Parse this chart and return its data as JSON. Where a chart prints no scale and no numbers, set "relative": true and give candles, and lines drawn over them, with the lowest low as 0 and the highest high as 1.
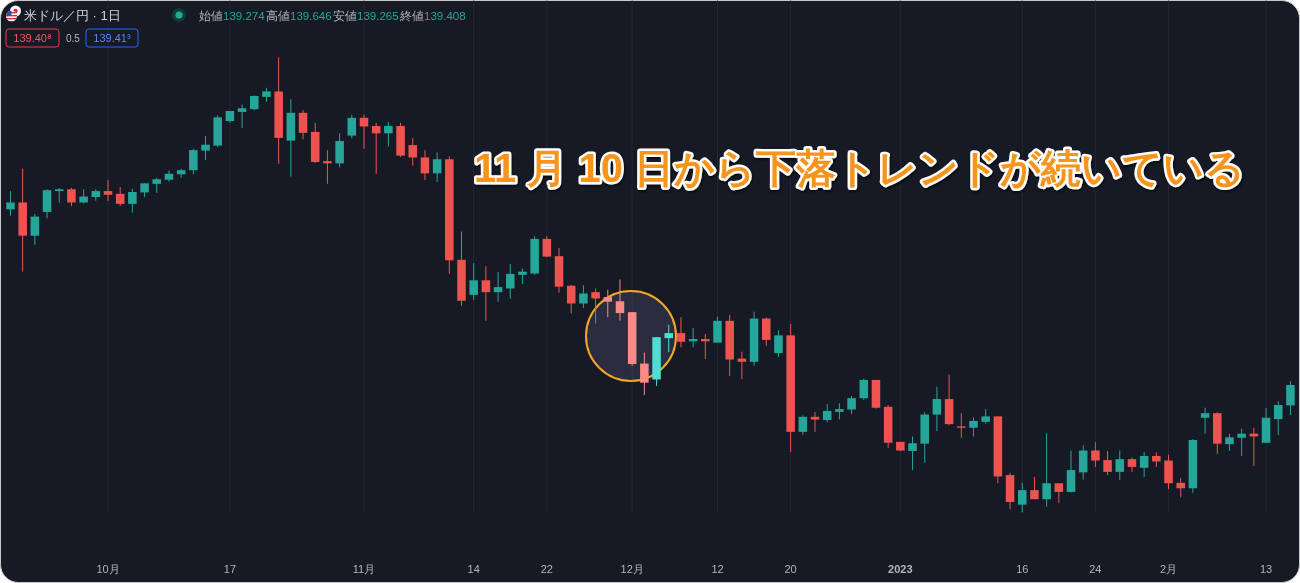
{
  "chart_data": {
    "type": "candlestick",
    "title": "米ドル／円 · 1日",
    "relative": true,
    "grid": "x",
    "categories": [
      null,
      null,
      null,
      null,
      null,
      null,
      null,
      null,
      "10月",
      null,
      null,
      null,
      null,
      null,
      null,
      null,
      null,
      null,
      "17",
      null,
      null,
      null,
      null,
      null,
      null,
      null,
      null,
      null,
      null,
      "11月",
      null,
      null,
      null,
      null,
      null,
      null,
      null,
      null,
      "14",
      null,
      null,
      null,
      null,
      null,
      "22",
      null,
      null,
      null,
      null,
      null,
      null,
      "12月",
      null,
      null,
      null,
      null,
      null,
      null,
      "12",
      null,
      null,
      null,
      null,
      null,
      "20",
      null,
      null,
      null,
      null,
      null,
      null,
      null,
      null,
      "2023",
      null,
      null,
      null,
      null,
      null,
      null,
      null,
      null,
      null,
      "16",
      null,
      null,
      null,
      null,
      null,
      "24",
      null,
      null,
      null,
      null,
      null,
      "2月",
      null,
      null,
      null,
      null,
      null,
      null,
      null,
      "13",
      null,
      null
    ],
    "ohlc": [
      [
        0.666,
        0.706,
        0.652,
        0.681
      ],
      [
        0.681,
        0.755,
        0.529,
        0.608
      ],
      [
        0.608,
        0.656,
        0.588,
        0.65
      ],
      [
        0.66,
        0.71,
        0.646,
        0.708
      ],
      [
        0.706,
        0.713,
        0.681,
        0.71
      ],
      [
        0.71,
        0.713,
        0.673,
        0.681
      ],
      [
        0.681,
        0.71,
        0.679,
        0.694
      ],
      [
        0.693,
        0.71,
        0.685,
        0.706
      ],
      [
        0.706,
        0.73,
        0.684,
        0.698
      ],
      [
        0.7,
        0.715,
        0.673,
        0.678
      ],
      [
        0.678,
        0.711,
        0.659,
        0.704
      ],
      [
        0.703,
        0.723,
        0.693,
        0.723
      ],
      [
        0.722,
        0.735,
        0.702,
        0.732
      ],
      [
        0.731,
        0.751,
        0.727,
        0.744
      ],
      [
        0.743,
        0.755,
        0.735,
        0.752
      ],
      [
        0.752,
        0.799,
        0.743,
        0.796
      ],
      [
        0.795,
        0.827,
        0.774,
        0.808
      ],
      [
        0.806,
        0.873,
        0.803,
        0.868
      ],
      [
        0.86,
        0.882,
        0.856,
        0.882
      ],
      [
        0.88,
        0.896,
        0.845,
        0.888
      ],
      [
        0.886,
        0.916,
        0.884,
        0.915
      ],
      [
        0.913,
        0.933,
        0.902,
        0.925
      ],
      [
        0.925,
        1,
        0.766,
        0.823
      ],
      [
        0.817,
        0.908,
        0.738,
        0.878
      ],
      [
        0.878,
        0.884,
        0.82,
        0.834
      ],
      [
        0.836,
        0.856,
        0.768,
        0.77
      ],
      [
        0.772,
        0.796,
        0.722,
        0.767
      ],
      [
        0.767,
        0.833,
        0.758,
        0.816
      ],
      [
        0.828,
        0.874,
        0.822,
        0.867
      ],
      [
        0.867,
        0.874,
        0.799,
        0.848
      ],
      [
        0.849,
        0.856,
        0.744,
        0.833
      ],
      [
        0.833,
        0.858,
        0.804,
        0.849
      ],
      [
        0.849,
        0.856,
        0.781,
        0.784
      ],
      [
        0.807,
        0.822,
        0.762,
        0.78
      ],
      [
        0.78,
        0.796,
        0.73,
        0.745
      ],
      [
        0.745,
        0.791,
        0.726,
        0.776
      ],
      [
        0.776,
        0.782,
        0.524,
        0.554
      ],
      [
        0.555,
        0.617,
        0.454,
        0.465
      ],
      [
        0.478,
        0.548,
        0.467,
        0.51
      ],
      [
        0.51,
        0.541,
        0.421,
        0.484
      ],
      [
        0.484,
        0.528,
        0.463,
        0.495
      ],
      [
        0.492,
        0.546,
        0.47,
        0.524
      ],
      [
        0.522,
        0.536,
        0.502,
        0.529
      ],
      [
        0.525,
        0.607,
        0.522,
        0.601
      ],
      [
        0.601,
        0.607,
        0.561,
        0.562
      ],
      [
        0.563,
        0.581,
        0.483,
        0.496
      ],
      [
        0.498,
        0.5,
        0.437,
        0.459
      ],
      [
        0.459,
        0.499,
        0.449,
        0.481
      ],
      [
        0.484,
        0.492,
        0.415,
        0.47
      ],
      [
        0.473,
        0.489,
        0.429,
        0.463
      ],
      [
        0.464,
        0.512,
        0.421,
        0.438
      ],
      [
        0.44,
        0.44,
        0.322,
        0.326
      ],
      [
        0.327,
        0.351,
        0.258,
        0.285
      ],
      [
        0.292,
        0.385,
        0.278,
        0.385
      ],
      [
        0.383,
        0.412,
        0.352,
        0.394
      ],
      [
        0.394,
        0.429,
        0.363,
        0.375
      ],
      [
        0.376,
        0.405,
        0.363,
        0.381
      ],
      [
        0.381,
        0.392,
        0.337,
        0.376
      ],
      [
        0.373,
        0.43,
        0.373,
        0.421
      ],
      [
        0.421,
        0.434,
        0.3,
        0.336
      ],
      [
        0.338,
        0.353,
        0.293,
        0.331
      ],
      [
        0.331,
        0.441,
        0.322,
        0.426
      ],
      [
        0.426,
        0.428,
        0.366,
        0.379
      ],
      [
        0.35,
        0.4,
        0.342,
        0.389
      ],
      [
        0.389,
        0.414,
        0.133,
        0.177
      ],
      [
        0.177,
        0.213,
        0.171,
        0.21
      ],
      [
        0.21,
        0.221,
        0.177,
        0.204
      ],
      [
        0.203,
        0.238,
        0.198,
        0.223
      ],
      [
        0.221,
        0.24,
        0.204,
        0.227
      ],
      [
        0.226,
        0.256,
        0.216,
        0.251
      ],
      [
        0.251,
        0.294,
        0.247,
        0.291
      ],
      [
        0.291,
        0.291,
        0.228,
        0.23
      ],
      [
        0.232,
        0.236,
        0.142,
        0.153
      ],
      [
        0.155,
        0.155,
        0.135,
        0.136
      ],
      [
        0.135,
        0.167,
        0.093,
        0.152
      ],
      [
        0.151,
        0.22,
        0.109,
        0.215
      ],
      [
        0.215,
        0.276,
        0.179,
        0.249
      ],
      [
        0.249,
        0.303,
        0.191,
        0.194
      ],
      [
        0.189,
        0.218,
        0.164,
        0.186
      ],
      [
        0.186,
        0.209,
        0.167,
        0.201
      ],
      [
        0.199,
        0.227,
        0.195,
        0.211
      ],
      [
        0.211,
        0.211,
        0.064,
        0.079
      ],
      [
        0.082,
        0.087,
        0.007,
        0.023
      ],
      [
        0.017,
        0.065,
        0,
        0.049
      ],
      [
        0.049,
        0.078,
        0.029,
        0.029
      ],
      [
        0.029,
        0.174,
        0.013,
        0.064
      ],
      [
        0.064,
        0.064,
        0.021,
        0.045
      ],
      [
        0.045,
        0.136,
        0.044,
        0.093
      ],
      [
        0.088,
        0.147,
        0.072,
        0.136
      ],
      [
        0.136,
        0.154,
        0.1,
        0.114
      ],
      [
        0.115,
        0.135,
        0.082,
        0.089
      ],
      [
        0.089,
        0.136,
        0.071,
        0.117
      ],
      [
        0.117,
        0.121,
        0.089,
        0.1
      ],
      [
        0.098,
        0.133,
        0.078,
        0.124
      ],
      [
        0.124,
        0.132,
        0.1,
        0.112
      ],
      [
        0.114,
        0.127,
        0.051,
        0.064
      ],
      [
        0.065,
        0.076,
        0.033,
        0.053
      ],
      [
        0.053,
        0.161,
        0.043,
        0.159
      ],
      [
        0.208,
        0.23,
        0.173,
        0.218
      ],
      [
        0.218,
        0.22,
        0.129,
        0.151
      ],
      [
        0.15,
        0.173,
        0.135,
        0.165
      ],
      [
        0.164,
        0.184,
        0.124,
        0.173
      ],
      [
        0.173,
        0.186,
        0.102,
        0.167
      ],
      [
        0.153,
        0.229,
        0.153,
        0.208
      ],
      [
        0.205,
        0.244,
        0.17,
        0.236
      ],
      [
        0.235,
        0.288,
        0.214,
        0.28
      ]
    ],
    "colors": [
      "#26a69a",
      "#ef5350",
      "#26a69a",
      "#26a69a",
      "#26a69a",
      "#ef5350",
      "#26a69a",
      "#26a69a",
      "#ef5350",
      "#ef5350",
      "#26a69a",
      "#26a69a",
      "#26a69a",
      "#26a69a",
      "#26a69a",
      "#26a69a",
      "#26a69a",
      "#26a69a",
      "#26a69a",
      "#26a69a",
      "#26a69a",
      "#26a69a",
      "#ef5350",
      "#26a69a",
      "#ef5350",
      "#ef5350",
      "#ef5350",
      "#26a69a",
      "#26a69a",
      "#ef5350",
      "#ef5350",
      "#26a69a",
      "#ef5350",
      "#ef5350",
      "#ef5350",
      "#26a69a",
      "#ef5350",
      "#ef5350",
      "#26a69a",
      "#ef5350",
      "#26a69a",
      "#26a69a",
      "#26a69a",
      "#26a69a",
      "#ef5350",
      "#ef5350",
      "#ef5350",
      "#26a69a",
      "#ef5350",
      "#f98b87",
      "#f98b87",
      "#f98b87",
      "#f98b87",
      "#4ddfd1",
      "#4ddfd1",
      "#ef5350",
      "#26a69a",
      "#ef5350",
      "#26a69a",
      "#ef5350",
      "#ef5350",
      "#26a69a",
      "#ef5350",
      "#26a69a",
      "#ef5350",
      "#26a69a",
      "#ef5350",
      "#26a69a",
      "#26a69a",
      "#26a69a",
      "#26a69a",
      "#ef5350",
      "#ef5350",
      "#ef5350",
      "#26a69a",
      "#26a69a",
      "#26a69a",
      "#ef5350",
      "#ef5350",
      "#26a69a",
      "#26a69a",
      "#ef5350",
      "#ef5350",
      "#26a69a",
      "#ef5350",
      "#26a69a",
      "#ef5350",
      "#26a69a",
      "#26a69a",
      "#ef5350",
      "#ef5350",
      "#26a69a",
      "#ef5350",
      "#26a69a",
      "#ef5350",
      "#ef5350",
      "#ef5350",
      "#26a69a",
      "#26a69a",
      "#ef5350",
      "#26a69a",
      "#26a69a",
      "#ef5350",
      "#26a69a",
      "#26a69a",
      "#26a69a"
    ],
    "annotations": [
      "始値139.274",
      "高値139.646",
      "安値139.265",
      "終値139.408",
      "139.40⁸",
      "0.5",
      "139.41³",
      "11 月 10 日から下落トレンドが続いている"
    ]
  }
}
